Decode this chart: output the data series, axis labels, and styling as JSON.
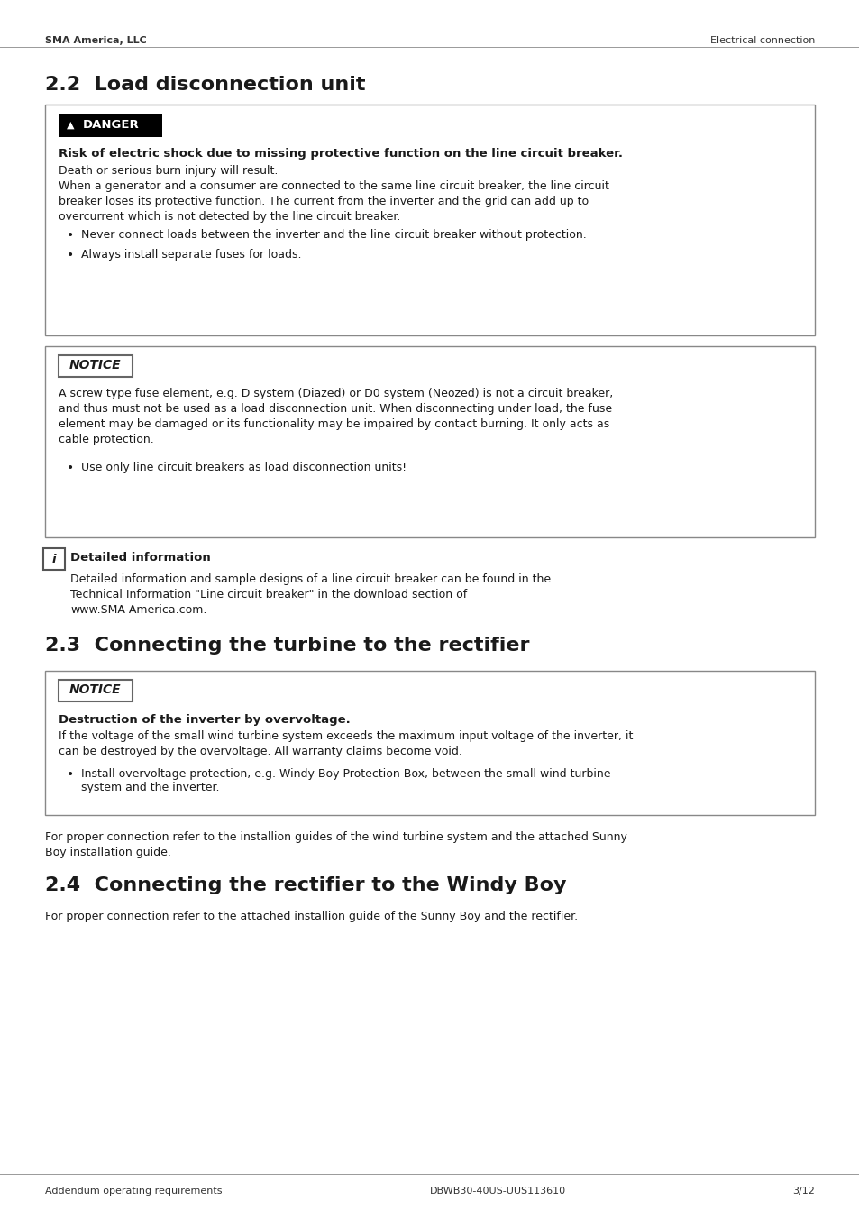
{
  "header_left": "SMA America, LLC",
  "header_right": "Electrical connection",
  "footer_left": "Addendum operating requirements",
  "footer_center": "DBWB30-40US-UUS113610",
  "footer_right": "3/12",
  "section_2_2_title": "2.2  Load disconnection unit",
  "danger_bold_text": "Risk of electric shock due to missing protective function on the line circuit breaker.",
  "danger_text1": "Death or serious burn injury will result.",
  "danger_bullet1": "Never connect loads between the inverter and the line circuit breaker without protection.",
  "danger_bullet2": "Always install separate fuses for loads.",
  "danger_para_lines": [
    "When a generator and a consumer are connected to the same line circuit breaker, the line circuit",
    "breaker loses its protective function. The current from the inverter and the grid can add up to",
    "overcurrent which is not detected by the line circuit breaker."
  ],
  "notice1_label": "NOTICE",
  "notice1_lines": [
    "A screw type fuse element, e.g. D system (Diazed) or D0 system (Neozed) is ",
    "not",
    " a circuit breaker,",
    "and thus must ",
    "not",
    " be used as a load disconnection unit. When disconnecting under load, the fuse",
    "element may be damaged or its functionality may be impaired by contact burning. It only acts as",
    "cable protection."
  ],
  "notice1_bullet": "Use only line circuit breakers as load disconnection units!",
  "info_title": "Detailed information",
  "info_lines": [
    "Detailed information and sample designs of a line circuit breaker can be found in the",
    "Technical Information \"Line circuit breaker\" in the download section of",
    "www.SMA-America.com."
  ],
  "section_2_3_title": "2.3  Connecting the turbine to the rectifier",
  "notice2_label": "NOTICE",
  "notice2_bold": "Destruction of the inverter by overvoltage.",
  "notice2_lines": [
    "If the voltage of the small wind turbine system exceeds the maximum input voltage of the inverter, it",
    "can be destroyed by the overvoltage. All warranty claims become void."
  ],
  "notice2_bullet_lines": [
    "Install overvoltage protection, e.g. Windy Boy Protection Box, between the small wind turbine",
    "system and the inverter."
  ],
  "section_2_3_para_lines": [
    "For proper connection refer to the installion guides of the wind turbine system and the attached Sunny",
    "Boy installation guide."
  ],
  "section_2_4_title": "2.4  Connecting the rectifier to the Windy Boy",
  "section_2_4_para": "For proper connection refer to the attached installion guide of the Sunny Boy and the rectifier.",
  "bg_color": "#ffffff",
  "text_color": "#1a1a1a",
  "border_color": "#888888",
  "danger_bg": "#000000",
  "notice_border": "#666666"
}
